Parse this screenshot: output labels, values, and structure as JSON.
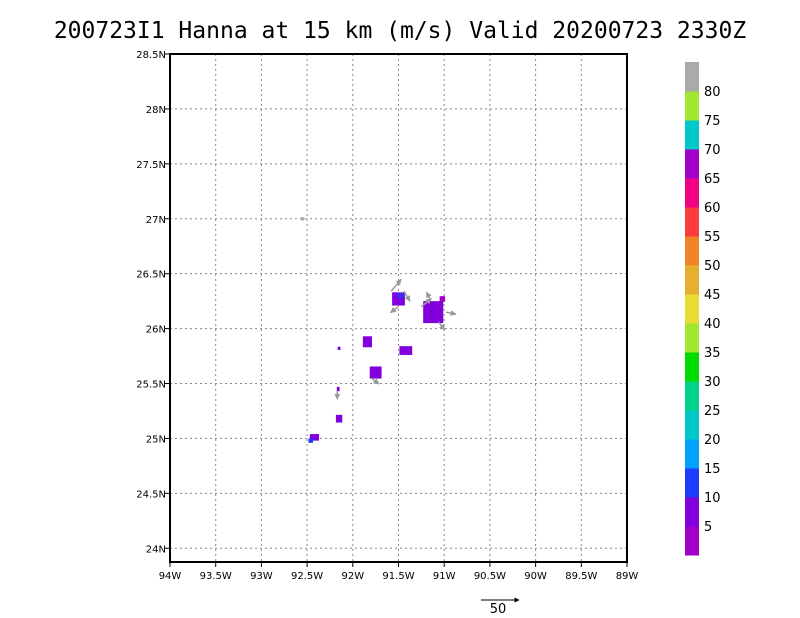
{
  "title": "200723I1 Hanna at 15 km (m/s) Valid 20200723 2330Z",
  "chart_data": {
    "type": "heatmap",
    "xlim": [
      -94,
      -89
    ],
    "ylim": [
      23.875,
      28.5
    ],
    "grid": true,
    "x_ticks": [
      {
        "value": -94,
        "label": "94W"
      },
      {
        "value": -93.5,
        "label": "93.5W"
      },
      {
        "value": -93,
        "label": "93W"
      },
      {
        "value": -92.5,
        "label": "92.5W"
      },
      {
        "value": -92,
        "label": "92W"
      },
      {
        "value": -91.5,
        "label": "91.5W"
      },
      {
        "value": -91,
        "label": "91W"
      },
      {
        "value": -90.5,
        "label": "90.5W"
      },
      {
        "value": -90,
        "label": "90W"
      },
      {
        "value": -89.5,
        "label": "89.5W"
      },
      {
        "value": -89,
        "label": "89W"
      }
    ],
    "y_ticks": [
      {
        "value": 28.5,
        "label": "28.5N"
      },
      {
        "value": 28,
        "label": "28N"
      },
      {
        "value": 27.5,
        "label": "27.5N"
      },
      {
        "value": 27,
        "label": "27N"
      },
      {
        "value": 26.5,
        "label": "26.5N"
      },
      {
        "value": 26,
        "label": "26N"
      },
      {
        "value": 25.5,
        "label": "25.5N"
      },
      {
        "value": 25,
        "label": "25N"
      },
      {
        "value": 24.5,
        "label": "24.5N"
      },
      {
        "value": 24,
        "label": "24N"
      }
    ],
    "colorbar": {
      "labels": [
        "5",
        "10",
        "15",
        "20",
        "25",
        "30",
        "35",
        "40",
        "45",
        "50",
        "55",
        "60",
        "65",
        "70",
        "75",
        "80"
      ],
      "colors": [
        "#a000c8",
        "#8200dc",
        "#1e3cff",
        "#00a0ff",
        "#00c8c8",
        "#00d28c",
        "#00dc00",
        "#a0e632",
        "#e6dc32",
        "#e6af2d",
        "#f08228",
        "#fa3c3c",
        "#f00082",
        "#a000c8",
        "#00c8c8",
        "#a0e632",
        "#aaaaaa"
      ]
    },
    "wind_patches": [
      {
        "lon": -92.55,
        "lat": 27.0,
        "w": 0.04,
        "h": 0.03,
        "color": "#aaaaaa"
      },
      {
        "lon": -91.5,
        "lat": 26.27,
        "w": 0.14,
        "h": 0.12,
        "color": "#8200dc"
      },
      {
        "lon": -91.48,
        "lat": 26.3,
        "w": 0.05,
        "h": 0.05,
        "color": "#1e3cff"
      },
      {
        "lon": -91.12,
        "lat": 26.15,
        "w": 0.22,
        "h": 0.2,
        "color": "#8200dc"
      },
      {
        "lon": -91.02,
        "lat": 26.27,
        "w": 0.06,
        "h": 0.05,
        "color": "#a000c8"
      },
      {
        "lon": -91.42,
        "lat": 25.8,
        "w": 0.14,
        "h": 0.08,
        "color": "#8200dc"
      },
      {
        "lon": -91.84,
        "lat": 25.88,
        "w": 0.1,
        "h": 0.1,
        "color": "#8200dc"
      },
      {
        "lon": -91.75,
        "lat": 25.6,
        "w": 0.13,
        "h": 0.11,
        "color": "#8200dc"
      },
      {
        "lon": -92.15,
        "lat": 25.82,
        "w": 0.03,
        "h": 0.03,
        "color": "#8200dc"
      },
      {
        "lon": -92.16,
        "lat": 25.45,
        "w": 0.03,
        "h": 0.04,
        "color": "#8200dc"
      },
      {
        "lon": -92.15,
        "lat": 25.18,
        "w": 0.07,
        "h": 0.07,
        "color": "#8200dc"
      },
      {
        "lon": -92.42,
        "lat": 25.01,
        "w": 0.1,
        "h": 0.06,
        "color": "#8200dc"
      },
      {
        "lon": -92.46,
        "lat": 24.98,
        "w": 0.05,
        "h": 0.04,
        "color": "#1e3cff"
      }
    ],
    "wind_arrows": [
      {
        "lon": -91.58,
        "lat": 26.34,
        "u": 10,
        "v": 12
      },
      {
        "lon": -91.44,
        "lat": 26.34,
        "u": 6,
        "v": -10
      },
      {
        "lon": -91.5,
        "lat": 26.2,
        "u": -8,
        "v": -6
      },
      {
        "lon": -91.25,
        "lat": 26.2,
        "u": 10,
        "v": 8
      },
      {
        "lon": -91.15,
        "lat": 26.26,
        "u": -4,
        "v": 8
      },
      {
        "lon": -90.98,
        "lat": 26.15,
        "u": 10,
        "v": -2
      },
      {
        "lon": -91.06,
        "lat": 26.06,
        "u": 6,
        "v": -8
      },
      {
        "lon": -91.8,
        "lat": 25.55,
        "u": 8,
        "v": -6
      },
      {
        "lon": -92.17,
        "lat": 25.43,
        "u": 0,
        "v": -8
      }
    ],
    "reference_vector": {
      "label": "50"
    }
  }
}
